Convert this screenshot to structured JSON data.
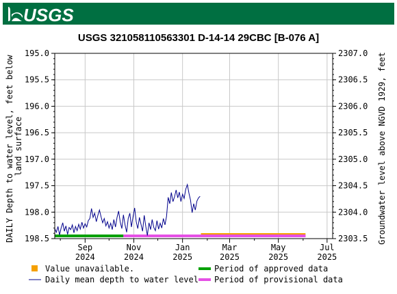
{
  "header": {
    "logo_text": "USGS",
    "bar_color": "#006F41",
    "icon": "usgs-wave-logo-icon"
  },
  "chart_data": {
    "type": "line",
    "title": "USGS 321058110563301 D-14-14 29CBC [B-076 A]",
    "ylabel_left": [
      "DAILY Depth to water level, feet below",
      "land surface"
    ],
    "ylabel_right": "Groundwater level above NGVD 1929, feet",
    "y_left_range": [
      195.0,
      198.5
    ],
    "y_left_inverted": true,
    "y_left_ticks": [
      "195.0",
      "195.5",
      "196.0",
      "196.5",
      "197.0",
      "197.5",
      "198.0",
      "198.5"
    ],
    "y_right_range": [
      2303.5,
      2307.0
    ],
    "y_right_ticks": [
      "2307.0",
      "2306.5",
      "2306.0",
      "2305.5",
      "2305.0",
      "2304.5",
      "2304.0",
      "2303.5"
    ],
    "x_range": [
      "2024-07-25",
      "2025-07-08"
    ],
    "x_ticks": [
      {
        "date": "2024-09-01",
        "month": "Sep",
        "year": "2024"
      },
      {
        "date": "2024-11-01",
        "month": "Nov",
        "year": "2024"
      },
      {
        "date": "2025-01-01",
        "month": "Jan",
        "year": "2025"
      },
      {
        "date": "2025-03-01",
        "month": "Mar",
        "year": "2025"
      },
      {
        "date": "2025-05-01",
        "month": "May",
        "year": "2025"
      },
      {
        "date": "2025-07-01",
        "month": "Jul",
        "year": "2025"
      }
    ],
    "grid": true,
    "series": [
      {
        "name": "Daily mean depth to water level",
        "color": "#00008B",
        "points": [
          [
            "2024-07-25",
            198.31
          ],
          [
            "2024-07-27",
            198.38
          ],
          [
            "2024-07-29",
            198.27
          ],
          [
            "2024-07-31",
            198.43
          ],
          [
            "2024-08-02",
            198.3
          ],
          [
            "2024-08-04",
            198.2
          ],
          [
            "2024-08-06",
            198.36
          ],
          [
            "2024-08-08",
            198.26
          ],
          [
            "2024-08-10",
            198.42
          ],
          [
            "2024-08-12",
            198.29
          ],
          [
            "2024-08-14",
            198.33
          ],
          [
            "2024-08-16",
            198.24
          ],
          [
            "2024-08-18",
            198.39
          ],
          [
            "2024-08-20",
            198.27
          ],
          [
            "2024-08-22",
            198.35
          ],
          [
            "2024-08-24",
            198.23
          ],
          [
            "2024-08-26",
            198.32
          ],
          [
            "2024-08-28",
            198.19
          ],
          [
            "2024-08-30",
            198.3
          ],
          [
            "2024-09-01",
            198.22
          ],
          [
            "2024-09-03",
            198.28
          ],
          [
            "2024-09-05",
            198.16
          ],
          [
            "2024-09-07",
            198.12
          ],
          [
            "2024-09-09",
            197.93
          ],
          [
            "2024-09-11",
            198.1
          ],
          [
            "2024-09-13",
            198.02
          ],
          [
            "2024-09-15",
            198.18
          ],
          [
            "2024-09-17",
            198.06
          ],
          [
            "2024-09-19",
            197.96
          ],
          [
            "2024-09-21",
            198.09
          ],
          [
            "2024-09-23",
            198.2
          ],
          [
            "2024-09-25",
            198.12
          ],
          [
            "2024-09-27",
            198.26
          ],
          [
            "2024-09-29",
            198.18
          ],
          [
            "2024-10-01",
            198.3
          ],
          [
            "2024-10-03",
            198.21
          ],
          [
            "2024-10-05",
            198.33
          ],
          [
            "2024-10-07",
            198.14
          ],
          [
            "2024-10-09",
            198.28
          ],
          [
            "2024-10-11",
            198.1
          ],
          [
            "2024-10-13",
            197.98
          ],
          [
            "2024-10-15",
            198.19
          ],
          [
            "2024-10-17",
            198.31
          ],
          [
            "2024-10-19",
            198.05
          ],
          [
            "2024-10-21",
            198.24
          ],
          [
            "2024-10-23",
            198.38
          ],
          [
            "2024-10-25",
            198.12
          ],
          [
            "2024-10-27",
            198.02
          ],
          [
            "2024-10-29",
            198.28
          ],
          [
            "2024-10-31",
            198.09
          ],
          [
            "2024-11-02",
            197.92
          ],
          [
            "2024-11-04",
            198.18
          ],
          [
            "2024-11-06",
            198.31
          ],
          [
            "2024-11-08",
            198.1
          ],
          [
            "2024-11-10",
            198.23
          ],
          [
            "2024-11-12",
            198.36
          ],
          [
            "2024-11-14",
            198.06
          ],
          [
            "2024-11-16",
            198.27
          ],
          [
            "2024-11-18",
            198.44
          ],
          [
            "2024-11-20",
            198.2
          ],
          [
            "2024-11-22",
            198.33
          ],
          [
            "2024-11-24",
            198.14
          ],
          [
            "2024-11-26",
            198.29
          ],
          [
            "2024-11-28",
            198.35
          ],
          [
            "2024-11-30",
            198.16
          ],
          [
            "2024-12-02",
            198.32
          ],
          [
            "2024-12-04",
            198.21
          ],
          [
            "2024-12-06",
            198.3
          ],
          [
            "2024-12-08",
            198.12
          ],
          [
            "2024-12-10",
            198.24
          ],
          [
            "2024-12-12",
            198.08
          ],
          [
            "2024-12-14",
            197.72
          ],
          [
            "2024-12-16",
            197.84
          ],
          [
            "2024-12-18",
            197.63
          ],
          [
            "2024-12-20",
            197.8
          ],
          [
            "2024-12-22",
            197.71
          ],
          [
            "2024-12-24",
            197.58
          ],
          [
            "2024-12-26",
            197.73
          ],
          [
            "2024-12-28",
            197.62
          ],
          [
            "2024-12-30",
            197.8
          ],
          [
            "2025-01-01",
            197.66
          ],
          [
            "2025-01-03",
            197.74
          ],
          [
            "2025-01-05",
            197.57
          ],
          [
            "2025-01-07",
            197.48
          ],
          [
            "2025-01-09",
            197.64
          ],
          [
            "2025-01-11",
            197.77
          ],
          [
            "2025-01-13",
            198.01
          ],
          [
            "2025-01-15",
            197.84
          ],
          [
            "2025-01-17",
            197.96
          ],
          [
            "2025-01-19",
            197.79
          ],
          [
            "2025-01-21",
            197.73
          ],
          [
            "2025-01-23",
            197.7
          ]
        ]
      }
    ],
    "approval_periods": [
      {
        "name": "Period of approved data",
        "color": "#00A000",
        "start": "2024-07-25",
        "end": "2024-10-19"
      },
      {
        "name": "Period of provisional data",
        "color": "#E550E5",
        "start": "2024-10-19",
        "end": "2025-06-04"
      }
    ],
    "unavailable": [
      {
        "name": "Value unavailable.",
        "color": "#F5A000",
        "start": "2025-01-24",
        "end": "2025-06-04"
      }
    ]
  }
}
